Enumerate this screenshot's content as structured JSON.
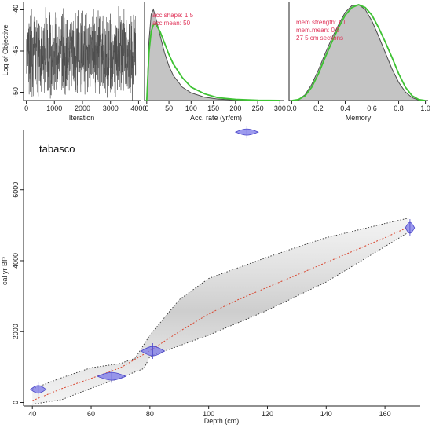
{
  "colors": {
    "trace": "#4d4d4d",
    "hist_fill": "#c4c4c4",
    "hist_line": "#4d4d4d",
    "prior_line": "#3ec233",
    "annotation": "#e0355a",
    "date_fill": "#7b78e8",
    "date_edge": "#4a46c9",
    "median_line": "#d9452e",
    "range_line": "#333333"
  },
  "chart_data": [
    {
      "id": "trace",
      "type": "line",
      "xlabel": "Iteration",
      "ylabel": "Log of Objective",
      "xlim": [
        -100,
        4100
      ],
      "ylim": [
        -51,
        -39
      ],
      "xticks": [
        0,
        1000,
        2000,
        3000,
        4000
      ],
      "yticks": [
        -50,
        -45,
        -40
      ],
      "n_iterations": 3900,
      "band_mean": -45.5,
      "band_range": [
        -51,
        -39.5
      ]
    },
    {
      "id": "acc-rate",
      "type": "area",
      "xlabel": "Acc. rate (yr/cm)",
      "xlim": [
        -5,
        310
      ],
      "xticks": [
        0,
        50,
        100,
        150,
        200,
        250,
        300
      ],
      "annotation": [
        "acc.shape: 1.5",
        "acc.mean: 50"
      ],
      "posterior": {
        "x": [
          0,
          5,
          10,
          15,
          20,
          30,
          40,
          50,
          60,
          80,
          100,
          130,
          160,
          200,
          250,
          300
        ],
        "y": [
          0.0,
          0.62,
          0.9,
          0.95,
          0.87,
          0.68,
          0.5,
          0.36,
          0.26,
          0.14,
          0.08,
          0.035,
          0.015,
          0.005,
          0.001,
          0.0
        ]
      },
      "prior": {
        "x": [
          0,
          5,
          10,
          15,
          20,
          30,
          40,
          50,
          60,
          80,
          100,
          130,
          160,
          200,
          250,
          300
        ],
        "y": [
          0.0,
          0.5,
          0.72,
          0.79,
          0.8,
          0.72,
          0.6,
          0.48,
          0.38,
          0.24,
          0.14,
          0.07,
          0.03,
          0.012,
          0.003,
          0.001
        ]
      }
    },
    {
      "id": "memory",
      "type": "area",
      "xlabel": "Memory",
      "xlim": [
        -0.02,
        1.02
      ],
      "xticks": [
        0.0,
        0.2,
        0.4,
        0.6,
        0.8,
        1.0
      ],
      "xtick_labels": [
        "0.0",
        "0.2",
        "0.4",
        "0.6",
        "0.8",
        "1.0"
      ],
      "annotation": [
        "mem.strength: 10",
        "mem.mean: 0.5",
        "27 5 cm sections"
      ],
      "posterior": {
        "x": [
          0.0,
          0.05,
          0.1,
          0.15,
          0.2,
          0.25,
          0.3,
          0.35,
          0.4,
          0.45,
          0.5,
          0.55,
          0.6,
          0.65,
          0.7,
          0.75,
          0.8,
          0.85,
          0.9,
          0.95,
          1.0
        ],
        "y": [
          0.0,
          0.01,
          0.06,
          0.17,
          0.32,
          0.49,
          0.65,
          0.79,
          0.92,
          0.99,
          1.0,
          0.95,
          0.83,
          0.67,
          0.5,
          0.33,
          0.19,
          0.09,
          0.03,
          0.005,
          0.0
        ]
      },
      "prior": {
        "x": [
          0.0,
          0.05,
          0.1,
          0.15,
          0.2,
          0.25,
          0.3,
          0.35,
          0.4,
          0.45,
          0.5,
          0.55,
          0.6,
          0.65,
          0.7,
          0.75,
          0.8,
          0.85,
          0.9,
          0.95,
          1.0
        ],
        "y": [
          0.0,
          0.01,
          0.05,
          0.14,
          0.28,
          0.45,
          0.61,
          0.76,
          0.89,
          0.97,
          1.0,
          0.97,
          0.89,
          0.76,
          0.61,
          0.45,
          0.28,
          0.14,
          0.05,
          0.01,
          0.0
        ]
      }
    },
    {
      "id": "age-depth",
      "type": "line",
      "title": "tabasco",
      "xlabel": "Depth (cm)",
      "ylabel": "cal yr BP",
      "xlim": [
        37,
        172
      ],
      "ylim": [
        -100,
        7700
      ],
      "xticks": [
        40,
        60,
        80,
        100,
        120,
        140,
        160
      ],
      "yticks": [
        0,
        2000,
        4000,
        6000
      ],
      "median": {
        "depth": [
          40,
          50,
          60,
          70,
          80,
          90,
          100,
          110,
          120,
          130,
          140,
          150,
          160,
          168
        ],
        "age": [
          50,
          390,
          680,
          980,
          1460,
          2000,
          2500,
          2900,
          3250,
          3600,
          3950,
          4300,
          4650,
          4950
        ]
      },
      "range_upper": {
        "depth": [
          40,
          50,
          60,
          70,
          75,
          80,
          90,
          100,
          110,
          120,
          130,
          140,
          150,
          160,
          168
        ],
        "age": [
          380,
          700,
          980,
          1100,
          1250,
          1900,
          2900,
          3500,
          3800,
          4100,
          4380,
          4650,
          4850,
          5050,
          5200
        ]
      },
      "range_lower": {
        "depth": [
          40,
          50,
          60,
          70,
          78,
          80,
          90,
          100,
          110,
          120,
          130,
          140,
          150,
          160,
          168
        ],
        "age": [
          -50,
          80,
          400,
          700,
          960,
          1300,
          1600,
          1900,
          2250,
          2600,
          3000,
          3400,
          3900,
          4400,
          4800
        ]
      },
      "dates": [
        {
          "depth": 42,
          "age": 370,
          "spread": 220,
          "height": 5
        },
        {
          "depth": 67,
          "age": 740,
          "spread": 400,
          "height": 5
        },
        {
          "depth": 81,
          "age": 1450,
          "spread": 330,
          "height": 6
        },
        {
          "depth": 168.5,
          "age": 4930,
          "spread": 130,
          "height": 7
        },
        {
          "depth": 113,
          "age": 7630,
          "spread": 320,
          "height": 4
        }
      ]
    }
  ]
}
